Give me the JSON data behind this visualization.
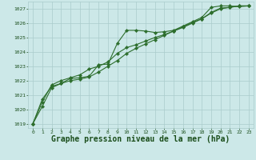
{
  "background_color": "#cce8e8",
  "grid_color": "#aacccc",
  "line_color": "#2d6e2d",
  "title": "Graphe pression niveau de la mer (hPa)",
  "title_fontsize": 7,
  "title_color": "#1a4d1a",
  "ylabel_ticks": [
    1019,
    1020,
    1021,
    1022,
    1023,
    1024,
    1025,
    1026,
    1027
  ],
  "xlim": [
    -0.5,
    23.5
  ],
  "ylim": [
    1018.7,
    1027.5
  ],
  "x_ticks": [
    0,
    1,
    2,
    3,
    4,
    5,
    6,
    7,
    8,
    9,
    10,
    11,
    12,
    13,
    14,
    15,
    16,
    17,
    18,
    19,
    20,
    21,
    22,
    23
  ],
  "series1_x": [
    0,
    1,
    2,
    3,
    4,
    5,
    6,
    7,
    8,
    9,
    10,
    11,
    12,
    13,
    14,
    15,
    16,
    17,
    18,
    19,
    20,
    21,
    22,
    23
  ],
  "series1_y": [
    1019.0,
    1020.7,
    1021.6,
    1021.8,
    1022.15,
    1022.2,
    1022.3,
    1023.1,
    1023.15,
    1024.6,
    1025.5,
    1025.5,
    1025.45,
    1025.35,
    1025.4,
    1025.5,
    1025.8,
    1026.1,
    1026.4,
    1027.1,
    1027.2,
    1027.2,
    1027.15,
    1027.2
  ],
  "series2_x": [
    0,
    1,
    2,
    3,
    4,
    5,
    6,
    7,
    8,
    9,
    10,
    11,
    12,
    13,
    14,
    15,
    16,
    17,
    18,
    19,
    20,
    21,
    22,
    23
  ],
  "series2_y": [
    1019.0,
    1020.5,
    1021.7,
    1022.0,
    1022.2,
    1022.4,
    1022.8,
    1023.0,
    1023.3,
    1023.9,
    1024.3,
    1024.5,
    1024.75,
    1025.0,
    1025.2,
    1025.45,
    1025.7,
    1026.0,
    1026.3,
    1026.75,
    1027.05,
    1027.1,
    1027.2,
    1027.2
  ],
  "series3_x": [
    0,
    1,
    2,
    3,
    4,
    5,
    6,
    7,
    8,
    9,
    10,
    11,
    12,
    13,
    14,
    15,
    16,
    17,
    18,
    19,
    20,
    21,
    22,
    23
  ],
  "series3_y": [
    1019.0,
    1020.2,
    1021.5,
    1021.8,
    1022.0,
    1022.1,
    1022.25,
    1022.6,
    1023.0,
    1023.4,
    1023.9,
    1024.25,
    1024.55,
    1024.85,
    1025.15,
    1025.45,
    1025.75,
    1026.05,
    1026.3,
    1026.7,
    1027.0,
    1027.1,
    1027.2,
    1027.2
  ]
}
